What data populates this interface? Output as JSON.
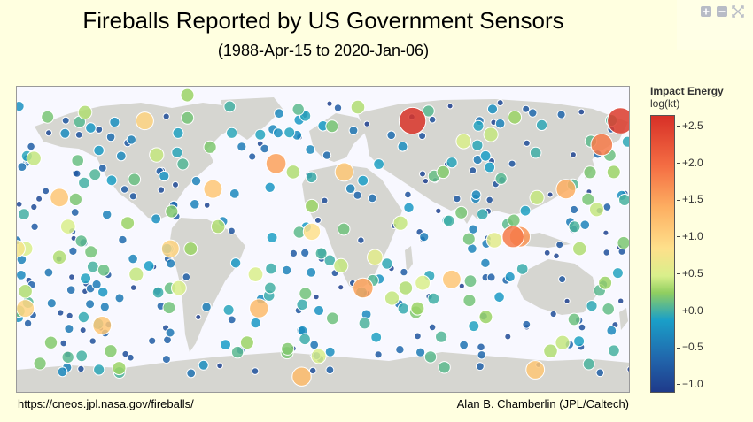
{
  "title": "Fireballs Reported by US Government Sensors",
  "subtitle": "(1988-Apr-15 to 2020-Jan-06)",
  "footer": {
    "source": "https://cneos.jpl.nasa.gov/fireballs/",
    "credit": "Alan B. Chamberlin (JPL/Caltech)"
  },
  "modebar": {
    "icons": [
      "zoom-in-icon",
      "zoom-out-icon",
      "reset-view-icon"
    ]
  },
  "colorbar": {
    "title": "Impact Energy",
    "unit": "log(kt)",
    "ticks": [
      "+2.5",
      "+2.0",
      "+1.5",
      "+1.0",
      "+0.5",
      "+0.0",
      "−0.5",
      "−1.0"
    ],
    "range": [
      -1.15,
      2.75
    ]
  },
  "colors": {
    "background": "#ffffe0",
    "ocean": "#f8f8ff",
    "land": "#d6d6d1"
  },
  "chart_data": {
    "type": "scatter",
    "projection": "equirectangular",
    "xlabel": "",
    "ylabel": "",
    "xlim": [
      -180,
      180
    ],
    "ylim": [
      -90,
      90
    ],
    "colorscale": "RdYlBu_r",
    "points": [
      {
        "lon": 52,
        "lat": 70,
        "e": 2.7
      },
      {
        "lon": 174,
        "lat": 70,
        "e": 2.6
      },
      {
        "lon": 163,
        "lat": 56,
        "e": 1.8
      },
      {
        "lon": 142,
        "lat": 30,
        "e": 1.4
      },
      {
        "lon": 111,
        "lat": 2,
        "e": 1.8
      },
      {
        "lon": 115,
        "lat": 2,
        "e": 1.6
      },
      {
        "lon": -180,
        "lat": -5,
        "e": 0.9
      },
      {
        "lon": -175,
        "lat": -40,
        "e": 1.1
      },
      {
        "lon": -130,
        "lat": -50,
        "e": 1.2
      },
      {
        "lon": -38,
        "lat": -40,
        "e": 1.3
      },
      {
        "lon": -155,
        "lat": 25,
        "e": 1.2
      },
      {
        "lon": -105,
        "lat": 70,
        "e": 1.1
      },
      {
        "lon": -65,
        "lat": 30,
        "e": 1.2
      },
      {
        "lon": -28,
        "lat": 45,
        "e": 1.5
      },
      {
        "lon": 12,
        "lat": 40,
        "e": 1.2
      },
      {
        "lon": -7,
        "lat": 5,
        "e": 1.0
      },
      {
        "lon": 23,
        "lat": -28,
        "e": 1.5
      },
      {
        "lon": -90,
        "lat": -5,
        "e": 1.1
      },
      {
        "lon": -92,
        "lat": -5,
        "e": -0.2
      },
      {
        "lon": 30,
        "lat": -10,
        "e": 0.7
      },
      {
        "lon": 75,
        "lat": -23,
        "e": 1.2
      },
      {
        "lon": 124,
        "lat": -76,
        "e": 1.2
      },
      {
        "lon": -13,
        "lat": -80,
        "e": 1.3
      },
      {
        "lon": -3,
        "lat": -68,
        "e": 0.6
      },
      {
        "lon": -175,
        "lat": -30,
        "e": 0.4
      },
      {
        "lon": -175,
        "lat": -5,
        "e": 0.6
      },
      {
        "lon": -110,
        "lat": -20,
        "e": 0.5
      },
      {
        "lon": -85,
        "lat": -28,
        "e": 0.6
      },
      {
        "lon": -125,
        "lat": -65,
        "e": 0.2
      },
      {
        "lon": -150,
        "lat": 8,
        "e": 0.6
      },
      {
        "lon": -140,
        "lat": 75,
        "e": 0.4
      },
      {
        "lon": -80,
        "lat": 85,
        "e": 0.3
      },
      {
        "lon": -98,
        "lat": 50,
        "e": 0.5
      },
      {
        "lon": -62,
        "lat": 8,
        "e": 0.4
      },
      {
        "lon": -18,
        "lat": 40,
        "e": 0.4
      },
      {
        "lon": -7,
        "lat": 20,
        "e": 0.3
      },
      {
        "lon": 20,
        "lat": 78,
        "e": 0.4
      },
      {
        "lon": 45,
        "lat": 10,
        "e": 0.5
      },
      {
        "lon": 58,
        "lat": -25,
        "e": 0.6
      },
      {
        "lon": 48,
        "lat": -28,
        "e": 0.4
      },
      {
        "lon": 82,
        "lat": 58,
        "e": 0.6
      },
      {
        "lon": 98,
        "lat": 62,
        "e": 0.5
      },
      {
        "lon": 112,
        "lat": 72,
        "e": 0.3
      },
      {
        "lon": 125,
        "lat": 25,
        "e": 0.5
      },
      {
        "lon": 160,
        "lat": 18,
        "e": 0.5
      },
      {
        "lon": 150,
        "lat": -5,
        "e": 0.4
      },
      {
        "lon": 165,
        "lat": -25,
        "e": 0.3
      },
      {
        "lon": 140,
        "lat": -60,
        "e": 0.5
      },
      {
        "lon": 95,
        "lat": -45,
        "e": 0.3
      },
      {
        "lon": -45,
        "lat": -60,
        "e": 0.3
      },
      {
        "lon": -170,
        "lat": 48,
        "e": 0.5
      },
      {
        "lon": -115,
        "lat": 10,
        "e": 0.3
      },
      {
        "lon": 100,
        "lat": 0,
        "e": 0.7
      },
      {
        "lon": -40,
        "lat": -20,
        "e": 0.6
      },
      {
        "lon": 170,
        "lat": 40,
        "e": 0.3
      },
      {
        "lon": -160,
        "lat": -60,
        "e": 0.2
      },
      {
        "lon": 40,
        "lat": -34,
        "e": 0.5
      },
      {
        "lon": 70,
        "lat": 40,
        "e": 0.2
      },
      {
        "lon": -120,
        "lat": -75,
        "e": 0.3
      },
      {
        "lon": 10,
        "lat": -15,
        "e": 0.5
      },
      {
        "lon": 133,
        "lat": -65,
        "e": 0.4
      },
      {
        "lon": 55,
        "lat": -40,
        "e": 0.3
      },
      {
        "lon": -78,
        "lat": -5,
        "e": 0.3
      },
      {
        "lon": -155,
        "lat": -10,
        "e": 0.4
      }
    ]
  }
}
